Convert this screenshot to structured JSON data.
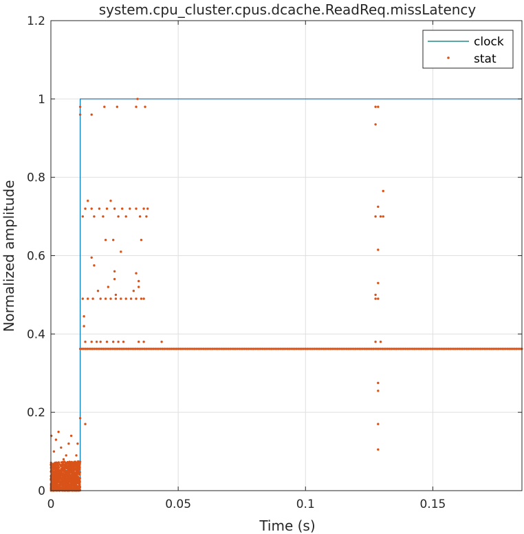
{
  "chart_data": {
    "type": "line",
    "title": "system.cpu_cluster.cpus.dcache.ReadReq.missLatency",
    "xlabel": "Time (s)",
    "ylabel": "Normalized amplitude",
    "xlim": [
      0,
      0.185
    ],
    "ylim": [
      0,
      1.2
    ],
    "xticks": [
      0,
      0.05,
      0.1,
      0.15
    ],
    "xtick_labels": [
      "0",
      "0.05",
      "0.1",
      "0.15"
    ],
    "yticks": [
      0,
      0.2,
      0.4,
      0.6,
      0.8,
      1.0,
      1.2
    ],
    "ytick_labels": [
      "0",
      "0.2",
      "0.4",
      "0.6",
      "0.8",
      "1",
      "1.2"
    ],
    "grid": true,
    "legend_position": "top-right",
    "series": [
      {
        "name": "clock",
        "style": "step",
        "color": "#0072BD",
        "legend_color": "#1f8a87",
        "x": [
          0,
          0.0115,
          0.0115,
          0.185
        ],
        "y": [
          0,
          0,
          1,
          1
        ]
      },
      {
        "name": "stat",
        "style": "scatter",
        "color": "#D95319",
        "points": [
          [
            0.0002,
            0.14
          ],
          [
            0.0012,
            0.1
          ],
          [
            0.002,
            0.13
          ],
          [
            0.003,
            0.15
          ],
          [
            0.004,
            0.11
          ],
          [
            0.005,
            0.08
          ],
          [
            0.006,
            0.09
          ],
          [
            0.007,
            0.12
          ],
          [
            0.008,
            0.14
          ],
          [
            0.009,
            0.07
          ],
          [
            0.01,
            0.09
          ],
          [
            0.0105,
            0.12
          ],
          [
            0.0005,
            0.05
          ],
          [
            0.0015,
            0.03
          ],
          [
            0.0025,
            0.06
          ],
          [
            0.0035,
            0.02
          ],
          [
            0.0045,
            0.04
          ],
          [
            0.0055,
            0.05
          ],
          [
            0.0065,
            0.03
          ],
          [
            0.0075,
            0.06
          ],
          [
            0.0085,
            0.02
          ],
          [
            0.0095,
            0.04
          ],
          [
            0.0108,
            0.05
          ],
          [
            0.001,
            0.02
          ],
          [
            0.002,
            0.01
          ],
          [
            0.003,
            0.03
          ],
          [
            0.004,
            0.02
          ],
          [
            0.005,
            0.01
          ],
          [
            0.006,
            0.03
          ],
          [
            0.007,
            0.02
          ],
          [
            0.008,
            0.01
          ],
          [
            0.009,
            0.03
          ],
          [
            0.01,
            0.02
          ],
          [
            0.0115,
            0.185
          ],
          [
            0.0115,
            0.96
          ],
          [
            0.0115,
            0.98
          ],
          [
            0.0135,
            0.17
          ],
          [
            0.013,
            0.445
          ],
          [
            0.013,
            0.42
          ],
          [
            0.016,
            0.96
          ],
          [
            0.021,
            0.98
          ],
          [
            0.026,
            0.98
          ],
          [
            0.034,
            1.0
          ],
          [
            0.0335,
            0.98
          ],
          [
            0.037,
            0.98
          ],
          [
            0.0125,
            0.7
          ],
          [
            0.0135,
            0.72
          ],
          [
            0.0145,
            0.74
          ],
          [
            0.016,
            0.72
          ],
          [
            0.017,
            0.7
          ],
          [
            0.019,
            0.72
          ],
          [
            0.0205,
            0.7
          ],
          [
            0.022,
            0.72
          ],
          [
            0.0235,
            0.74
          ],
          [
            0.025,
            0.72
          ],
          [
            0.0265,
            0.7
          ],
          [
            0.028,
            0.72
          ],
          [
            0.0295,
            0.7
          ],
          [
            0.031,
            0.72
          ],
          [
            0.0335,
            0.72
          ],
          [
            0.035,
            0.7
          ],
          [
            0.0365,
            0.72
          ],
          [
            0.0375,
            0.7
          ],
          [
            0.038,
            0.72
          ],
          [
            0.016,
            0.595
          ],
          [
            0.017,
            0.575
          ],
          [
            0.0215,
            0.64
          ],
          [
            0.0245,
            0.64
          ],
          [
            0.0275,
            0.61
          ],
          [
            0.0355,
            0.64
          ],
          [
            0.025,
            0.56
          ],
          [
            0.025,
            0.54
          ],
          [
            0.0335,
            0.555
          ],
          [
            0.0345,
            0.535
          ],
          [
            0.0185,
            0.51
          ],
          [
            0.0225,
            0.52
          ],
          [
            0.0255,
            0.5
          ],
          [
            0.0325,
            0.51
          ],
          [
            0.0345,
            0.52
          ],
          [
            0.0125,
            0.49
          ],
          [
            0.0145,
            0.49
          ],
          [
            0.0165,
            0.49
          ],
          [
            0.0195,
            0.49
          ],
          [
            0.0215,
            0.49
          ],
          [
            0.0235,
            0.49
          ],
          [
            0.0255,
            0.49
          ],
          [
            0.0275,
            0.49
          ],
          [
            0.0295,
            0.49
          ],
          [
            0.0315,
            0.49
          ],
          [
            0.0335,
            0.49
          ],
          [
            0.0355,
            0.49
          ],
          [
            0.0365,
            0.49
          ],
          [
            0.0135,
            0.38
          ],
          [
            0.016,
            0.38
          ],
          [
            0.018,
            0.38
          ],
          [
            0.0195,
            0.38
          ],
          [
            0.022,
            0.38
          ],
          [
            0.0245,
            0.38
          ],
          [
            0.0265,
            0.38
          ],
          [
            0.0285,
            0.38
          ],
          [
            0.0345,
            0.38
          ],
          [
            0.0365,
            0.38
          ],
          [
            0.0435,
            0.38
          ],
          [
            0.1275,
            0.98
          ],
          [
            0.1285,
            0.98
          ],
          [
            0.1275,
            0.935
          ],
          [
            0.1305,
            0.765
          ],
          [
            0.1285,
            0.725
          ],
          [
            0.1275,
            0.7
          ],
          [
            0.1305,
            0.7
          ],
          [
            0.1295,
            0.7
          ],
          [
            0.1285,
            0.615
          ],
          [
            0.1285,
            0.53
          ],
          [
            0.1275,
            0.5
          ],
          [
            0.1285,
            0.49
          ],
          [
            0.1275,
            0.49
          ],
          [
            0.1275,
            0.38
          ],
          [
            0.1295,
            0.38
          ],
          [
            0.1285,
            0.275
          ],
          [
            0.1285,
            0.255
          ],
          [
            0.1285,
            0.17
          ],
          [
            0.1285,
            0.105
          ]
        ],
        "dense_band": {
          "x_range": [
            0,
            0.0115
          ],
          "y_range": [
            0,
            0.075
          ]
        },
        "baseline": {
          "y": 0.362,
          "x_range": [
            0.0115,
            0.185
          ]
        }
      }
    ]
  }
}
